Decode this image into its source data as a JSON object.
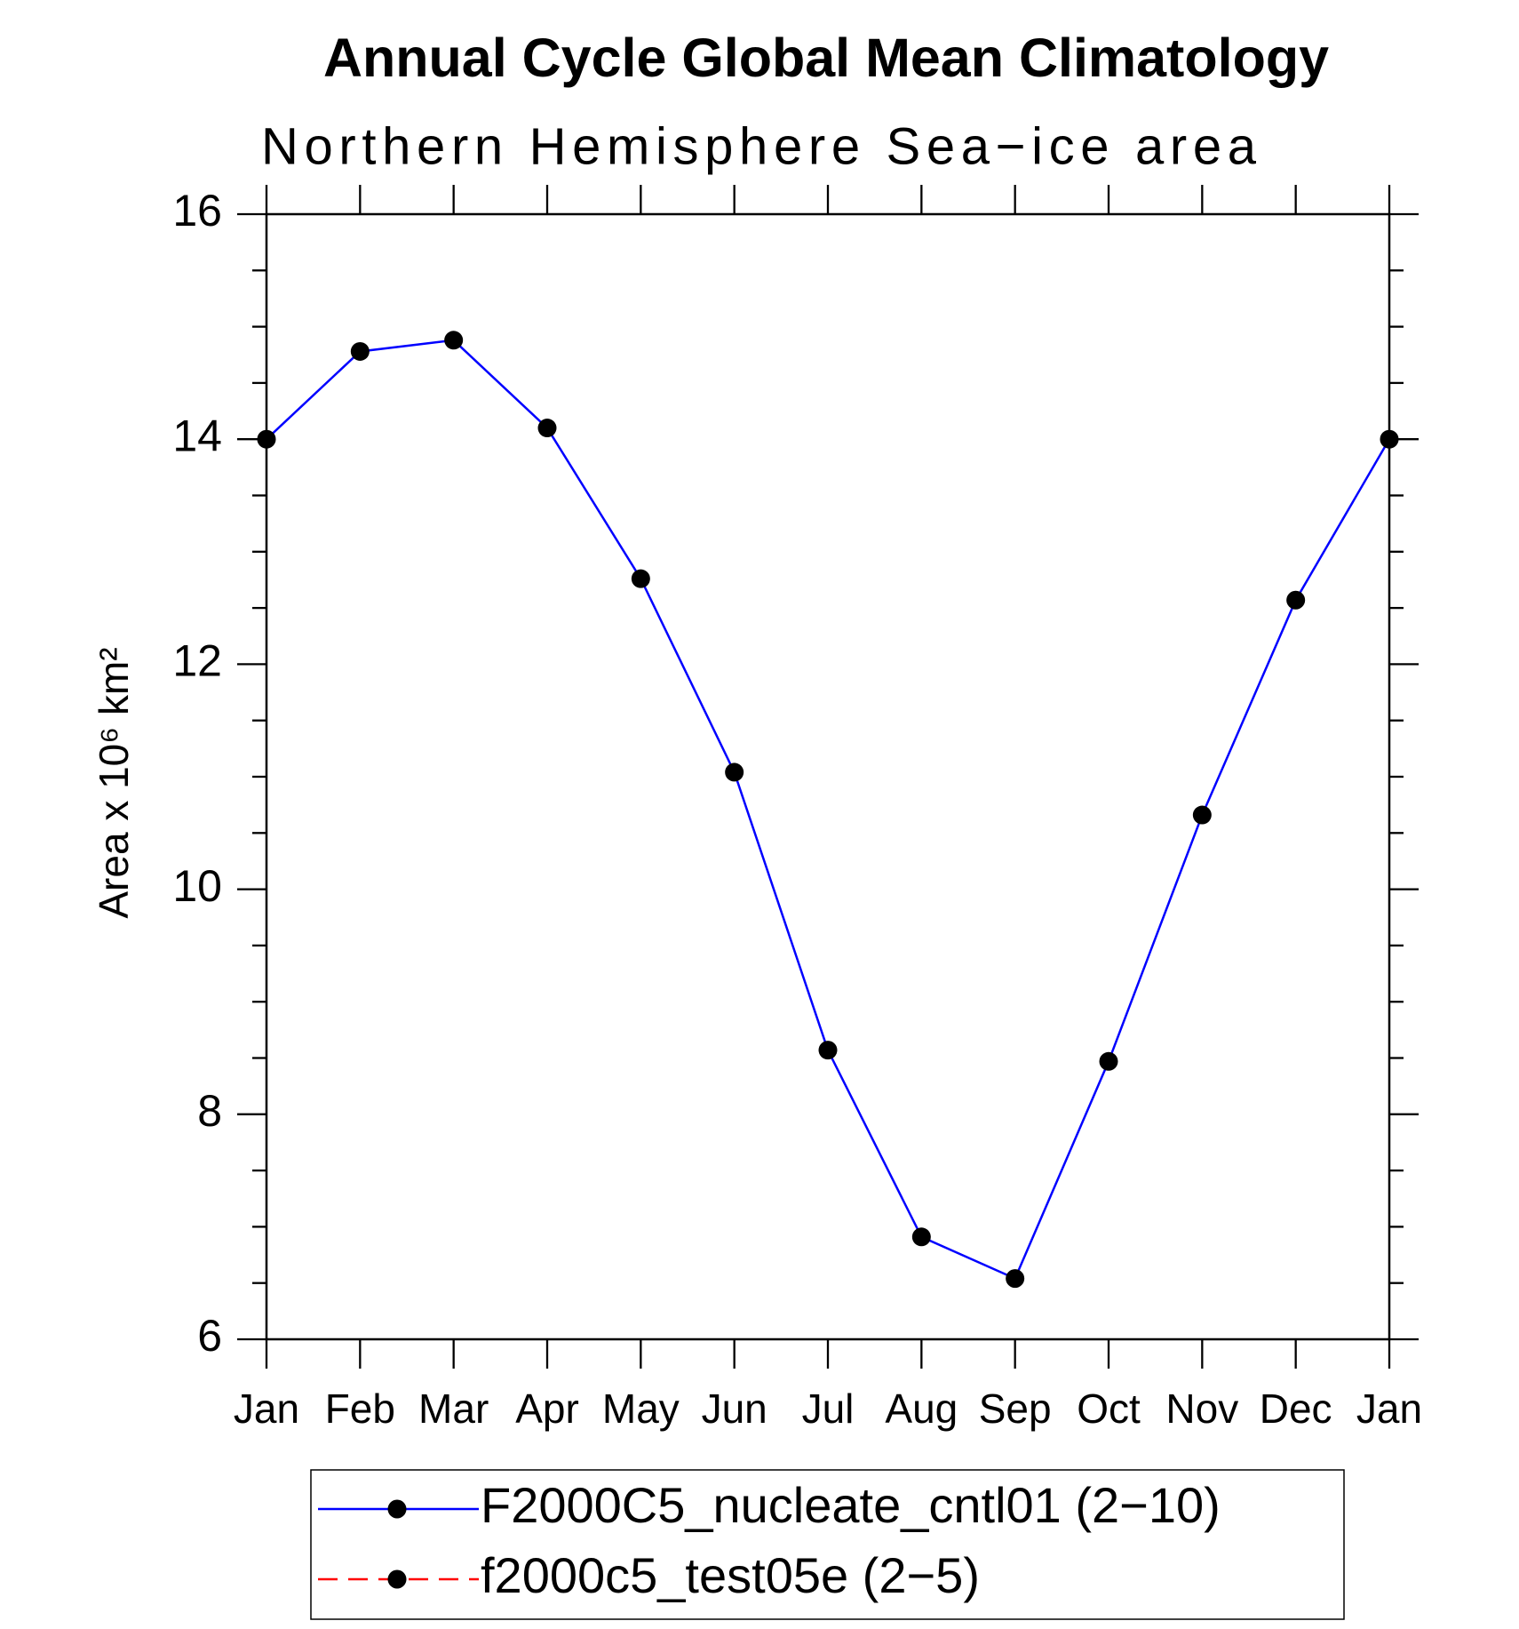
{
  "chart_data": {
    "type": "line",
    "title": "Annual Cycle Global Mean Climatology",
    "subtitle": "Northern Hemisphere Sea−ice area",
    "y_label": "Area x 10⁶ km²",
    "categories": [
      "Jan",
      "Feb",
      "Mar",
      "Apr",
      "May",
      "Jun",
      "Jul",
      "Aug",
      "Sep",
      "Oct",
      "Nov",
      "Dec",
      "Jan"
    ],
    "series": [
      {
        "name": "F2000C5_nucleate_cntl01 (2−10)",
        "color": "#0000ff",
        "dash": false,
        "values": [
          14.0,
          14.78,
          14.88,
          14.1,
          12.76,
          11.04,
          8.57,
          6.91,
          6.54,
          8.47,
          10.66,
          12.57,
          14.0
        ]
      },
      {
        "name": "f2000c5_test05e (2−5)",
        "color": "#ff0000",
        "dash": true,
        "values": [
          null,
          null,
          null,
          null,
          null,
          null,
          null,
          null,
          null,
          null,
          null,
          null,
          null
        ]
      }
    ],
    "marker_color": "#000000",
    "ylim": [
      6,
      16
    ],
    "yticks": [
      6,
      8,
      10,
      12,
      14,
      16
    ],
    "minor_yticks": [
      6.5,
      7,
      7.5,
      8.5,
      9,
      9.5,
      10.5,
      11,
      11.5,
      12.5,
      13,
      13.5,
      14.5,
      15,
      15.5
    ],
    "legend": "bottom"
  }
}
